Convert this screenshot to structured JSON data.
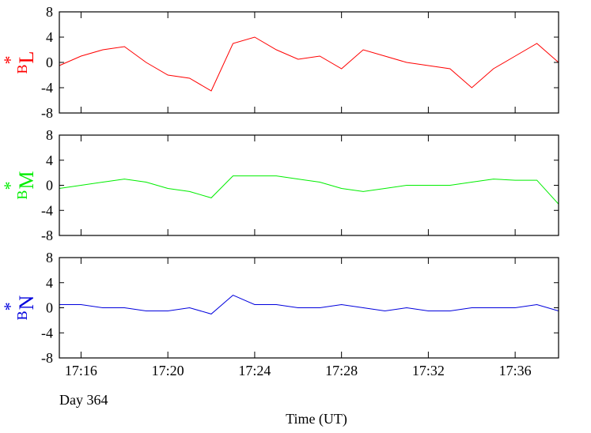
{
  "chart_data": [
    {
      "type": "line",
      "ylabel": "B",
      "ylabel_sup": "*",
      "ylabel_sub": "L",
      "x": [
        "17:15",
        "17:16",
        "17:17",
        "17:18",
        "17:19",
        "17:20",
        "17:21",
        "17:22",
        "17:23",
        "17:24",
        "17:25",
        "17:26",
        "17:27",
        "17:28",
        "17:29",
        "17:30",
        "17:31",
        "17:32",
        "17:33",
        "17:34",
        "17:35",
        "17:36",
        "17:37",
        "17:38"
      ],
      "series": [
        {
          "name": "B*L",
          "color": "#ff0000",
          "values": [
            -0.5,
            1,
            2,
            2.5,
            0,
            -2,
            -2.5,
            -4.5,
            3,
            4,
            2,
            0.5,
            1,
            -1,
            2,
            1,
            0,
            -0.5,
            -1,
            -4,
            -1,
            1,
            3,
            0
          ]
        }
      ],
      "xlim": [
        "17:15",
        "17:38"
      ],
      "ylim": [
        -8,
        8
      ],
      "yticks": [
        -8,
        -4,
        0,
        4,
        8
      ],
      "xticks": [
        "17:16",
        "17:20",
        "17:24",
        "17:28",
        "17:32",
        "17:36"
      ]
    },
    {
      "type": "line",
      "ylabel": "B",
      "ylabel_sup": "*",
      "ylabel_sub": "M",
      "x": [
        "17:15",
        "17:16",
        "17:17",
        "17:18",
        "17:19",
        "17:20",
        "17:21",
        "17:22",
        "17:23",
        "17:24",
        "17:25",
        "17:26",
        "17:27",
        "17:28",
        "17:29",
        "17:30",
        "17:31",
        "17:32",
        "17:33",
        "17:34",
        "17:35",
        "17:36",
        "17:37",
        "17:38"
      ],
      "series": [
        {
          "name": "B*M",
          "color": "#00ee00",
          "values": [
            -0.5,
            0,
            0.5,
            1,
            0.5,
            -0.5,
            -1,
            -2,
            1.5,
            1.5,
            1.5,
            1,
            0.5,
            -0.5,
            -1,
            -0.5,
            0,
            0,
            0,
            0.5,
            1,
            0.8,
            0.8,
            -3
          ]
        }
      ],
      "xlim": [
        "17:15",
        "17:38"
      ],
      "ylim": [
        -8,
        8
      ],
      "yticks": [
        -8,
        -4,
        0,
        4,
        8
      ],
      "xticks": [
        "17:16",
        "17:20",
        "17:24",
        "17:28",
        "17:32",
        "17:36"
      ]
    },
    {
      "type": "line",
      "ylabel": "B",
      "ylabel_sup": "*",
      "ylabel_sub": "N",
      "x": [
        "17:15",
        "17:16",
        "17:17",
        "17:18",
        "17:19",
        "17:20",
        "17:21",
        "17:22",
        "17:23",
        "17:24",
        "17:25",
        "17:26",
        "17:27",
        "17:28",
        "17:29",
        "17:30",
        "17:31",
        "17:32",
        "17:33",
        "17:34",
        "17:35",
        "17:36",
        "17:37",
        "17:38"
      ],
      "series": [
        {
          "name": "B*N",
          "color": "#0000dd",
          "values": [
            0.5,
            0.5,
            0,
            0,
            -0.5,
            -0.5,
            0,
            -1,
            2,
            0.5,
            0.5,
            0,
            0,
            0.5,
            0,
            -0.5,
            0,
            -0.5,
            -0.5,
            0,
            0,
            0,
            0.5,
            -0.5
          ]
        }
      ],
      "xlim": [
        "17:15",
        "17:38"
      ],
      "ylim": [
        -8,
        8
      ],
      "yticks": [
        -8,
        -4,
        0,
        4,
        8
      ],
      "xticks": [
        "17:16",
        "17:20",
        "17:24",
        "17:28",
        "17:32",
        "17:36"
      ],
      "xlabel": "Time (UT)",
      "annotation": "Day 364"
    }
  ]
}
